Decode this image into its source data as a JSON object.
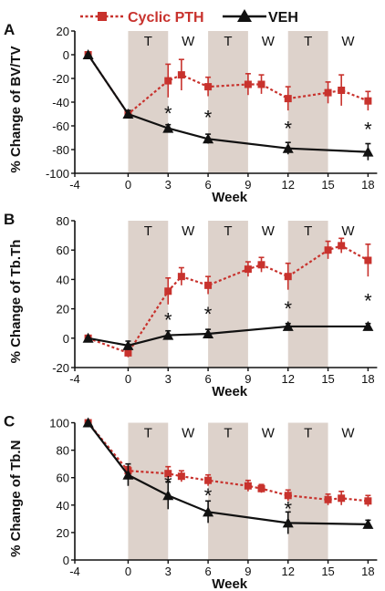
{
  "legend": {
    "cyclic_label": "Cyclic PTH",
    "veh_label": "VEH"
  },
  "colors": {
    "cyclic": "#c8322d",
    "veh": "#111111",
    "shade": "#ddd2cb",
    "axis": "#111111"
  },
  "chart_data": [
    {
      "type": "line",
      "panel_label": "A",
      "ylabel": "% Change of BV/TV",
      "xlabel": "Week",
      "xlim": [
        -4,
        19
      ],
      "ylim": [
        -100,
        20
      ],
      "xticks": [
        -4,
        0,
        3,
        6,
        9,
        12,
        15,
        18
      ],
      "yticks": [
        20,
        0,
        -20,
        -40,
        -60,
        -80,
        -100
      ],
      "shaded_regions": [
        [
          0,
          3
        ],
        [
          6,
          9
        ],
        [
          12,
          15
        ]
      ],
      "region_labels": [
        {
          "text": "T",
          "x": 1.5
        },
        {
          "text": "W",
          "x": 4.5
        },
        {
          "text": "T",
          "x": 7.5
        },
        {
          "text": "W",
          "x": 10.5
        },
        {
          "text": "T",
          "x": 13.5
        },
        {
          "text": "W",
          "x": 16.5
        }
      ],
      "series": [
        {
          "key": "cyclic",
          "marker": "square",
          "x": [
            -3,
            0,
            3,
            4,
            6,
            9,
            10,
            12,
            15,
            16,
            18
          ],
          "y": [
            0,
            -50,
            -22,
            -17,
            -27,
            -25,
            -25,
            -37,
            -32,
            -30,
            -39
          ],
          "err": [
            0,
            3,
            14,
            13,
            8,
            9,
            8,
            10,
            9,
            13,
            8
          ]
        },
        {
          "key": "veh",
          "marker": "triangle",
          "x": [
            -3,
            0,
            3,
            6,
            12,
            18
          ],
          "y": [
            0,
            -50,
            -62,
            -71,
            -79,
            -82
          ],
          "err": [
            0,
            3,
            3,
            4,
            5,
            7
          ]
        }
      ],
      "significance_x": [
        3,
        6,
        12,
        18
      ]
    },
    {
      "type": "line",
      "panel_label": "B",
      "ylabel": "% Change of Tb.Th",
      "xlabel": "Week",
      "xlim": [
        -4,
        19
      ],
      "ylim": [
        -20,
        80
      ],
      "xticks": [
        -4,
        0,
        3,
        6,
        9,
        12,
        15,
        18
      ],
      "yticks": [
        80,
        60,
        40,
        20,
        0,
        -20
      ],
      "shaded_regions": [
        [
          0,
          3
        ],
        [
          6,
          9
        ],
        [
          12,
          15
        ]
      ],
      "region_labels": [
        {
          "text": "T",
          "x": 1.5
        },
        {
          "text": "W",
          "x": 4.5
        },
        {
          "text": "T",
          "x": 7.5
        },
        {
          "text": "W",
          "x": 10.5
        },
        {
          "text": "T",
          "x": 13.5
        },
        {
          "text": "W",
          "x": 16.5
        }
      ],
      "series": [
        {
          "key": "cyclic",
          "marker": "square",
          "x": [
            -3,
            0,
            3,
            4,
            6,
            9,
            10,
            12,
            15,
            16,
            18
          ],
          "y": [
            0,
            -10,
            32,
            42,
            36,
            47,
            50,
            42,
            60,
            63,
            53
          ],
          "err": [
            0,
            3,
            9,
            6,
            6,
            5,
            5,
            9,
            6,
            5,
            11
          ]
        },
        {
          "key": "veh",
          "marker": "triangle",
          "x": [
            -3,
            0,
            3,
            6,
            12,
            18
          ],
          "y": [
            0,
            -5,
            2,
            3,
            8,
            8
          ],
          "err": [
            0,
            3,
            3,
            3,
            2,
            2
          ]
        }
      ],
      "significance_x": [
        3,
        6,
        12,
        18
      ]
    },
    {
      "type": "line",
      "panel_label": "C",
      "ylabel": "% Change of Tb.N",
      "xlabel": "Week",
      "xlim": [
        -4,
        19
      ],
      "ylim": [
        0,
        105
      ],
      "xticks": [
        -4,
        0,
        3,
        6,
        9,
        12,
        15,
        18
      ],
      "yticks": [
        100,
        80,
        60,
        40,
        20,
        0
      ],
      "shaded_regions": [
        [
          0,
          3
        ],
        [
          6,
          9
        ],
        [
          12,
          15
        ]
      ],
      "region_labels": [
        {
          "text": "T",
          "x": 1.5
        },
        {
          "text": "W",
          "x": 4.5
        },
        {
          "text": "T",
          "x": 7.5
        },
        {
          "text": "W",
          "x": 10.5
        },
        {
          "text": "T",
          "x": 13.5
        },
        {
          "text": "W",
          "x": 16.5
        }
      ],
      "series": [
        {
          "key": "cyclic",
          "marker": "square",
          "x": [
            -3,
            0,
            3,
            4,
            6,
            9,
            10,
            12,
            15,
            16,
            18
          ],
          "y": [
            100,
            65,
            63,
            61,
            58,
            54,
            52,
            47,
            44,
            45,
            43
          ],
          "err": [
            0,
            3,
            5,
            4,
            4,
            4,
            3,
            4,
            4,
            5,
            4
          ]
        },
        {
          "key": "veh",
          "marker": "triangle",
          "x": [
            -3,
            0,
            3,
            6,
            12,
            18
          ],
          "y": [
            100,
            62,
            47,
            35,
            27,
            26
          ],
          "err": [
            0,
            8,
            10,
            8,
            8,
            3
          ]
        }
      ],
      "significance_x": [
        3,
        6,
        12
      ]
    }
  ]
}
